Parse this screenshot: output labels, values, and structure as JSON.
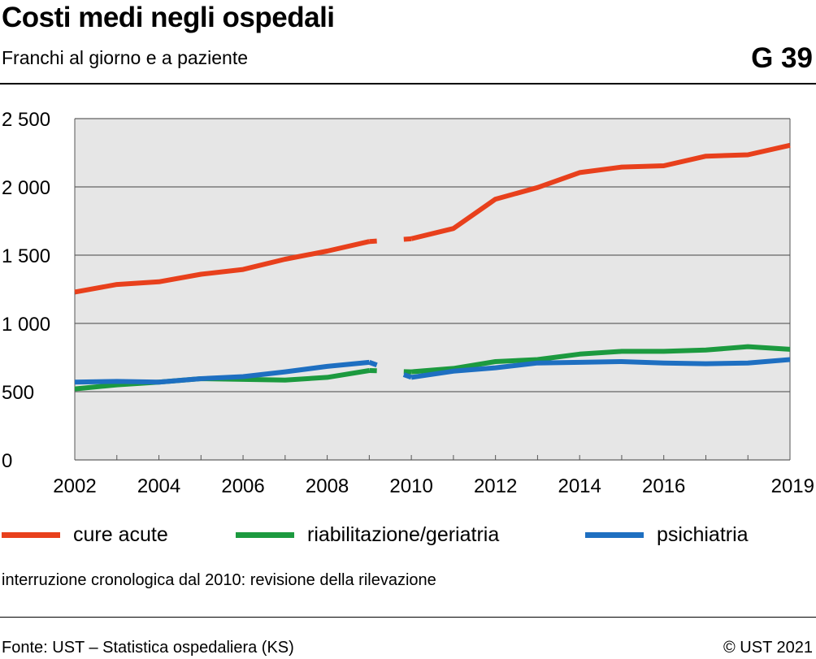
{
  "header": {
    "title": "Costi medi negli ospedali",
    "subtitle": "Franchi al giorno e a paziente",
    "graphic_number": "G 39"
  },
  "legend": {
    "items": [
      {
        "label": "cure acute",
        "color": "#e8401c"
      },
      {
        "label": "riabilitazione/geriatria",
        "color": "#1c9a3f"
      },
      {
        "label": "psichiatria",
        "color": "#1e6fc1"
      }
    ]
  },
  "note": "interruzione cronologica dal 2010: revisione della rilevazione",
  "footer": {
    "source": "Fonte: UST – Statistica ospedaliera (KS)",
    "copyright": "© UST 2021"
  },
  "chart_data": {
    "type": "line",
    "x": [
      2002,
      2003,
      2004,
      2005,
      2006,
      2007,
      2008,
      2009,
      2010,
      2011,
      2012,
      2013,
      2014,
      2015,
      2016,
      2017,
      2018,
      2019
    ],
    "xlim": [
      2002,
      2019
    ],
    "ylim": [
      0,
      2500
    ],
    "x_ticks": [
      2002,
      2004,
      2006,
      2008,
      2010,
      2012,
      2014,
      2016,
      2019
    ],
    "x_tick_labels": [
      "2002",
      "2004",
      "2006",
      "2008",
      "2010",
      "2012",
      "2014",
      "2016",
      "2019"
    ],
    "y_ticks": [
      0,
      500,
      1000,
      1500,
      2000,
      2500
    ],
    "y_tick_labels": [
      "0",
      "500",
      "1 000",
      "1 500",
      "2 000",
      "2 500"
    ],
    "break_after": 2009,
    "grid": "horizontal",
    "legend_position": "bottom",
    "series": [
      {
        "name": "cure acute",
        "color": "#e8401c",
        "values": [
          1230,
          1285,
          1305,
          1360,
          1395,
          1470,
          1530,
          1600,
          1620,
          1695,
          1910,
          1995,
          2105,
          2145,
          2155,
          2225,
          2235,
          2305
        ]
      },
      {
        "name": "riabilitazione/geriatria",
        "color": "#1c9a3f",
        "values": [
          520,
          550,
          570,
          595,
          590,
          585,
          605,
          655,
          645,
          670,
          720,
          735,
          775,
          795,
          795,
          805,
          830,
          810
        ]
      },
      {
        "name": "psichiatria",
        "color": "#1e6fc1",
        "values": [
          570,
          575,
          570,
          595,
          610,
          645,
          685,
          715,
          605,
          650,
          675,
          710,
          715,
          720,
          710,
          705,
          710,
          735
        ]
      }
    ]
  }
}
